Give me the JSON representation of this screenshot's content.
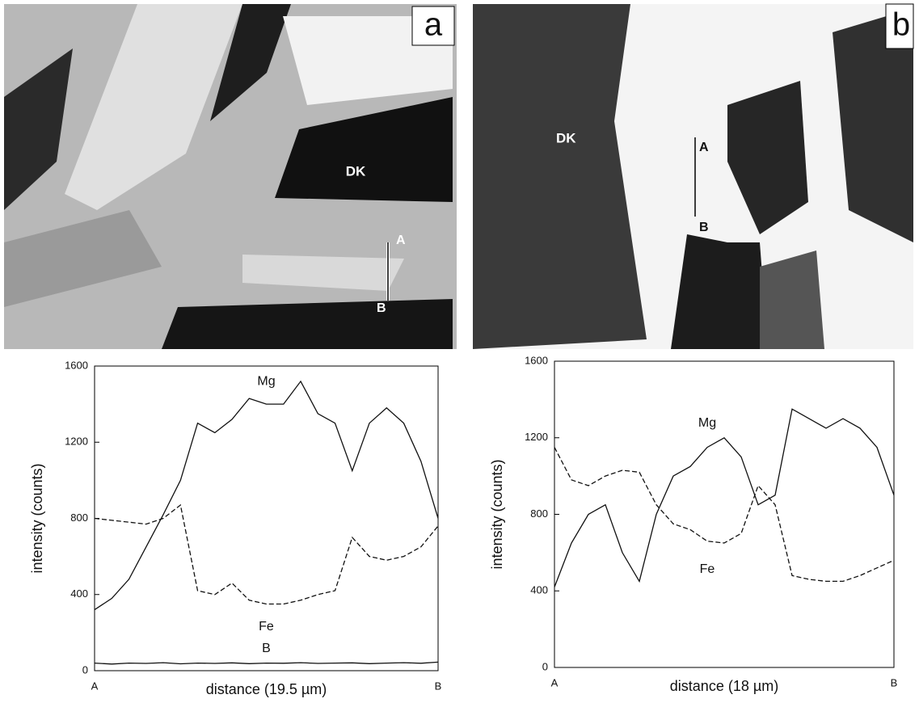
{
  "images": [
    {
      "panel_label": "a",
      "labels": [
        "DK",
        "A",
        "B"
      ]
    },
    {
      "panel_label": "b",
      "labels": [
        "DK",
        "A",
        "B"
      ]
    }
  ],
  "chart_data": [
    {
      "type": "line",
      "xlabel": "distance (19.5 µm)",
      "ylabel": "intensity (counts)",
      "categories": [
        "A",
        null,
        null,
        null,
        null,
        null,
        null,
        null,
        null,
        null,
        null,
        null,
        null,
        null,
        null,
        null,
        null,
        null,
        null,
        null,
        "B"
      ],
      "ylim": [
        0,
        1600
      ],
      "yticks": [
        0,
        400,
        800,
        1200,
        1600
      ],
      "series": [
        {
          "name": "Mg",
          "color": "#111111",
          "dash": false,
          "values": [
            320,
            380,
            480,
            650,
            820,
            1000,
            1300,
            1250,
            1320,
            1430,
            1400,
            1400,
            1520,
            1350,
            1300,
            1050,
            1300,
            1380,
            1300,
            1100,
            800
          ]
        },
        {
          "name": "Fe",
          "color": "#111111",
          "dash": true,
          "values": [
            800,
            790,
            780,
            770,
            800,
            870,
            420,
            400,
            460,
            370,
            350,
            350,
            370,
            400,
            420,
            700,
            600,
            580,
            600,
            650,
            760
          ]
        },
        {
          "name": "B",
          "color": "#111111",
          "dash": false,
          "values": [
            40,
            35,
            40,
            38,
            42,
            36,
            40,
            38,
            41,
            37,
            40,
            39,
            42,
            38,
            40,
            41,
            37,
            40,
            42,
            39,
            45
          ]
        }
      ]
    },
    {
      "type": "line",
      "xlabel": "distance (18 µm)",
      "ylabel": "intensity (counts)",
      "categories": [
        "A",
        null,
        null,
        null,
        null,
        null,
        null,
        null,
        null,
        null,
        null,
        null,
        null,
        null,
        null,
        null,
        null,
        null,
        null,
        null,
        "B"
      ],
      "ylim": [
        0,
        1600
      ],
      "yticks": [
        0,
        400,
        800,
        1200,
        1600
      ],
      "series": [
        {
          "name": "Mg",
          "color": "#111111",
          "dash": false,
          "values": [
            420,
            650,
            800,
            850,
            600,
            450,
            800,
            1000,
            1050,
            1150,
            1200,
            1100,
            850,
            900,
            1350,
            1300,
            1250,
            1300,
            1250,
            1150,
            900
          ]
        },
        {
          "name": "Fe",
          "color": "#111111",
          "dash": true,
          "values": [
            1150,
            980,
            950,
            1000,
            1030,
            1020,
            850,
            750,
            720,
            660,
            650,
            700,
            950,
            850,
            480,
            460,
            450,
            450,
            480,
            520,
            560
          ]
        }
      ]
    }
  ]
}
